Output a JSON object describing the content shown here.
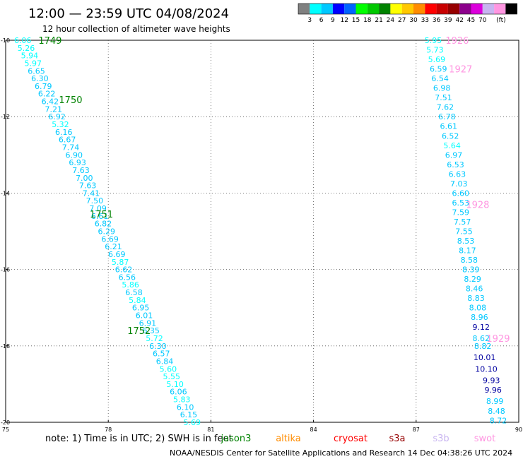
{
  "title": "12:00 — 23:59 UTC 04/08/2024",
  "subtitle": "12 hour collection of altimeter wave heights",
  "legend": {
    "unit": "(ft)",
    "colors": [
      "#808080",
      "#00ffff",
      "#00c8ff",
      "#0000ff",
      "#0064ff",
      "#00ff00",
      "#00c800",
      "#008200",
      "#ffff00",
      "#ffc800",
      "#ff8c00",
      "#ff0000",
      "#c80000",
      "#960000",
      "#8c008c",
      "#dc00dc",
      "#c8b4f0",
      "#ff96e1",
      "#000000"
    ],
    "ticks": [
      "3",
      "6",
      "9",
      "12",
      "15",
      "18",
      "21",
      "24",
      "27",
      "30",
      "33",
      "36",
      "39",
      "42",
      "45",
      "70"
    ]
  },
  "note": "note:  1) Time is in UTC; 2) SWH is in feet",
  "satellites": [
    {
      "name": "jason3",
      "color": "#008200"
    },
    {
      "name": "altika",
      "color": "#ff8c00"
    },
    {
      "name": "cryosat",
      "color": "#ff0000"
    },
    {
      "name": "s3a",
      "color": "#960000"
    },
    {
      "name": "s3b",
      "color": "#c8b4f0"
    },
    {
      "name": "swot",
      "color": "#ff96e1"
    }
  ],
  "credit": "NOAA/NESDIS Center for Satellite Applications and Research    14 Dec 04:38:26 UTC 2024",
  "chart_data": {
    "type": "scatter",
    "xlim": [
      75,
      90
    ],
    "ylim": [
      -20,
      -10
    ],
    "x_ticks": [
      75,
      78,
      81,
      84,
      87,
      90
    ],
    "x_tick_labels": [
      "75",
      "78",
      "81",
      "84",
      "87",
      "90"
    ],
    "y_ticks": [
      -10,
      -12,
      -14,
      -16,
      -18,
      -20
    ],
    "y_tick_labels": [
      "-10",
      "-12",
      "-14",
      "-16",
      "-18",
      "-20"
    ],
    "grid": true,
    "colors": {
      "cyan": "#00c8ff",
      "light_cyan": "#00ffff",
      "navy": "#0000a0"
    },
    "track_times": [
      {
        "label": "1749",
        "x": 76.3,
        "lat": -10.0,
        "color": "#008200"
      },
      {
        "label": "1750",
        "x": 76.9,
        "lat": -11.55,
        "color": "#008200"
      },
      {
        "label": "1751",
        "x": 77.8,
        "lat": -14.55,
        "color": "#008200"
      },
      {
        "label": "1752",
        "x": 78.9,
        "lat": -17.6,
        "color": "#008200"
      },
      {
        "label": "1926",
        "x": 88.2,
        "lat": -10.0,
        "color": "#ff96e1"
      },
      {
        "label": "1927",
        "x": 88.3,
        "lat": -10.75,
        "color": "#ff96e1"
      },
      {
        "label": "1928",
        "x": 88.8,
        "lat": -14.3,
        "color": "#ff96e1"
      },
      {
        "label": "1929",
        "x": 89.4,
        "lat": -17.8,
        "color": "#ff96e1"
      }
    ],
    "tracks": [
      {
        "satellite": "jason3",
        "points": [
          {
            "lon": 75.5,
            "lat": -10.0,
            "v": "6.06",
            "c": "#00ffff"
          },
          {
            "lon": 75.6,
            "lat": -10.2,
            "v": "5.26",
            "c": "#00ffff"
          },
          {
            "lon": 75.7,
            "lat": -10.4,
            "v": "5.94",
            "c": "#00ffff"
          },
          {
            "lon": 75.8,
            "lat": -10.6,
            "v": "5.97",
            "c": "#00ffff"
          },
          {
            "lon": 75.9,
            "lat": -10.8,
            "v": "6.65",
            "c": "#00c8ff"
          },
          {
            "lon": 76.0,
            "lat": -11.0,
            "v": "6.30",
            "c": "#00c8ff"
          },
          {
            "lon": 76.1,
            "lat": -11.2,
            "v": "6.79",
            "c": "#00c8ff"
          },
          {
            "lon": 76.2,
            "lat": -11.4,
            "v": "6.22",
            "c": "#00c8ff"
          },
          {
            "lon": 76.3,
            "lat": -11.6,
            "v": "6.42",
            "c": "#00c8ff"
          },
          {
            "lon": 76.4,
            "lat": -11.8,
            "v": "7.21",
            "c": "#00c8ff"
          },
          {
            "lon": 76.5,
            "lat": -12.0,
            "v": "6.92",
            "c": "#00c8ff"
          },
          {
            "lon": 76.6,
            "lat": -12.2,
            "v": "5.32",
            "c": "#00ffff"
          },
          {
            "lon": 76.7,
            "lat": -12.4,
            "v": "6.16",
            "c": "#00c8ff"
          },
          {
            "lon": 76.8,
            "lat": -12.6,
            "v": "6.67",
            "c": "#00c8ff"
          },
          {
            "lon": 76.9,
            "lat": -12.8,
            "v": "7.74",
            "c": "#00c8ff"
          },
          {
            "lon": 77.0,
            "lat": -13.0,
            "v": "6.90",
            "c": "#00c8ff"
          },
          {
            "lon": 77.1,
            "lat": -13.2,
            "v": "6.93",
            "c": "#00c8ff"
          },
          {
            "lon": 77.2,
            "lat": -13.4,
            "v": "7.63",
            "c": "#00c8ff"
          },
          {
            "lon": 77.3,
            "lat": -13.6,
            "v": "7.00",
            "c": "#00c8ff"
          },
          {
            "lon": 77.4,
            "lat": -13.8,
            "v": "7.63",
            "c": "#00c8ff"
          },
          {
            "lon": 77.5,
            "lat": -14.0,
            "v": "7.41",
            "c": "#00c8ff"
          },
          {
            "lon": 77.6,
            "lat": -14.2,
            "v": "7.50",
            "c": "#00c8ff"
          },
          {
            "lon": 77.7,
            "lat": -14.4,
            "v": "7.09",
            "c": "#00c8ff"
          },
          {
            "lon": 77.75,
            "lat": -14.6,
            "v": "6.61",
            "c": "#00c8ff"
          },
          {
            "lon": 77.85,
            "lat": -14.8,
            "v": "6.82",
            "c": "#00c8ff"
          },
          {
            "lon": 77.95,
            "lat": -15.0,
            "v": "6.29",
            "c": "#00c8ff"
          },
          {
            "lon": 78.05,
            "lat": -15.2,
            "v": "6.69",
            "c": "#00c8ff"
          },
          {
            "lon": 78.15,
            "lat": -15.4,
            "v": "6.21",
            "c": "#00c8ff"
          },
          {
            "lon": 78.25,
            "lat": -15.6,
            "v": "6.69",
            "c": "#00c8ff"
          },
          {
            "lon": 78.35,
            "lat": -15.8,
            "v": "5.87",
            "c": "#00ffff"
          },
          {
            "lon": 78.45,
            "lat": -16.0,
            "v": "6.62",
            "c": "#00c8ff"
          },
          {
            "lon": 78.55,
            "lat": -16.2,
            "v": "6.56",
            "c": "#00c8ff"
          },
          {
            "lon": 78.65,
            "lat": -16.4,
            "v": "5.86",
            "c": "#00ffff"
          },
          {
            "lon": 78.75,
            "lat": -16.6,
            "v": "6.58",
            "c": "#00c8ff"
          },
          {
            "lon": 78.85,
            "lat": -16.8,
            "v": "5.84",
            "c": "#00ffff"
          },
          {
            "lon": 78.95,
            "lat": -17.0,
            "v": "6.95",
            "c": "#00c8ff"
          },
          {
            "lon": 79.05,
            "lat": -17.2,
            "v": "6.01",
            "c": "#00c8ff"
          },
          {
            "lon": 79.15,
            "lat": -17.4,
            "v": "6.91",
            "c": "#00c8ff"
          },
          {
            "lon": 79.25,
            "lat": -17.6,
            "v": "6.35",
            "c": "#00c8ff"
          },
          {
            "lon": 79.35,
            "lat": -17.8,
            "v": "5.72",
            "c": "#00ffff"
          },
          {
            "lon": 79.45,
            "lat": -18.0,
            "v": "6.30",
            "c": "#00c8ff"
          },
          {
            "lon": 79.55,
            "lat": -18.2,
            "v": "6.57",
            "c": "#00c8ff"
          },
          {
            "lon": 79.65,
            "lat": -18.4,
            "v": "6.84",
            "c": "#00c8ff"
          },
          {
            "lon": 79.75,
            "lat": -18.6,
            "v": "5.60",
            "c": "#00ffff"
          },
          {
            "lon": 79.85,
            "lat": -18.8,
            "v": "5.55",
            "c": "#00ffff"
          },
          {
            "lon": 79.95,
            "lat": -19.0,
            "v": "5.10",
            "c": "#00ffff"
          },
          {
            "lon": 80.05,
            "lat": -19.2,
            "v": "6.06",
            "c": "#00c8ff"
          },
          {
            "lon": 80.15,
            "lat": -19.4,
            "v": "5.83",
            "c": "#00ffff"
          },
          {
            "lon": 80.25,
            "lat": -19.6,
            "v": "6.10",
            "c": "#00c8ff"
          },
          {
            "lon": 80.35,
            "lat": -19.8,
            "v": "6.15",
            "c": "#00c8ff"
          },
          {
            "lon": 80.45,
            "lat": -20.0,
            "v": "5.69",
            "c": "#00ffff"
          }
        ]
      },
      {
        "satellite": "swot",
        "points": [
          {
            "lon": 87.5,
            "lat": -10.0,
            "v": "5.95",
            "c": "#00ffff"
          },
          {
            "lon": 87.55,
            "lat": -10.25,
            "v": "5.73",
            "c": "#00ffff"
          },
          {
            "lon": 87.6,
            "lat": -10.5,
            "v": "5.69",
            "c": "#00ffff"
          },
          {
            "lon": 87.65,
            "lat": -10.75,
            "v": "6.59",
            "c": "#00c8ff"
          },
          {
            "lon": 87.7,
            "lat": -11.0,
            "v": "6.54",
            "c": "#00c8ff"
          },
          {
            "lon": 87.75,
            "lat": -11.25,
            "v": "6.98",
            "c": "#00c8ff"
          },
          {
            "lon": 87.8,
            "lat": -11.5,
            "v": "7.51",
            "c": "#00c8ff"
          },
          {
            "lon": 87.85,
            "lat": -11.75,
            "v": "7.62",
            "c": "#00c8ff"
          },
          {
            "lon": 87.9,
            "lat": -12.0,
            "v": "6.78",
            "c": "#00c8ff"
          },
          {
            "lon": 87.95,
            "lat": -12.25,
            "v": "6.61",
            "c": "#00c8ff"
          },
          {
            "lon": 88.0,
            "lat": -12.5,
            "v": "6.52",
            "c": "#00c8ff"
          },
          {
            "lon": 88.05,
            "lat": -12.75,
            "v": "5.64",
            "c": "#00ffff"
          },
          {
            "lon": 88.1,
            "lat": -13.0,
            "v": "6.97",
            "c": "#00c8ff"
          },
          {
            "lon": 88.15,
            "lat": -13.25,
            "v": "6.53",
            "c": "#00c8ff"
          },
          {
            "lon": 88.2,
            "lat": -13.5,
            "v": "6.63",
            "c": "#00c8ff"
          },
          {
            "lon": 88.25,
            "lat": -13.75,
            "v": "7.03",
            "c": "#00c8ff"
          },
          {
            "lon": 88.3,
            "lat": -14.0,
            "v": "6.60",
            "c": "#00c8ff"
          },
          {
            "lon": 88.3,
            "lat": -14.25,
            "v": "6.53",
            "c": "#00c8ff"
          },
          {
            "lon": 88.3,
            "lat": -14.5,
            "v": "7.59",
            "c": "#00c8ff"
          },
          {
            "lon": 88.35,
            "lat": -14.75,
            "v": "7.57",
            "c": "#00c8ff"
          },
          {
            "lon": 88.4,
            "lat": -15.0,
            "v": "7.55",
            "c": "#00c8ff"
          },
          {
            "lon": 88.45,
            "lat": -15.25,
            "v": "8.53",
            "c": "#00c8ff"
          },
          {
            "lon": 88.5,
            "lat": -15.5,
            "v": "8.17",
            "c": "#00c8ff"
          },
          {
            "lon": 88.55,
            "lat": -15.75,
            "v": "8.58",
            "c": "#00c8ff"
          },
          {
            "lon": 88.6,
            "lat": -16.0,
            "v": "8.39",
            "c": "#00c8ff"
          },
          {
            "lon": 88.65,
            "lat": -16.25,
            "v": "8.29",
            "c": "#00c8ff"
          },
          {
            "lon": 88.7,
            "lat": -16.5,
            "v": "8.46",
            "c": "#00c8ff"
          },
          {
            "lon": 88.75,
            "lat": -16.75,
            "v": "8.83",
            "c": "#00c8ff"
          },
          {
            "lon": 88.8,
            "lat": -17.0,
            "v": "8.08",
            "c": "#00c8ff"
          },
          {
            "lon": 88.85,
            "lat": -17.25,
            "v": "8.96",
            "c": "#00c8ff"
          },
          {
            "lon": 88.9,
            "lat": -17.5,
            "v": "9.12",
            "c": "#0000a0"
          },
          {
            "lon": 88.9,
            "lat": -17.8,
            "v": "8.62",
            "c": "#00c8ff"
          },
          {
            "lon": 88.95,
            "lat": -18.0,
            "v": "8.82",
            "c": "#00c8ff"
          },
          {
            "lon": 89.0,
            "lat": -18.3,
            "v": "10.01",
            "c": "#0000a0"
          },
          {
            "lon": 89.05,
            "lat": -18.6,
            "v": "10.10",
            "c": "#0000a0"
          },
          {
            "lon": 89.2,
            "lat": -18.9,
            "v": "9.93",
            "c": "#0000a0"
          },
          {
            "lon": 89.25,
            "lat": -19.15,
            "v": "9.96",
            "c": "#0000a0"
          },
          {
            "lon": 89.3,
            "lat": -19.45,
            "v": "8.99",
            "c": "#00c8ff"
          },
          {
            "lon": 89.35,
            "lat": -19.7,
            "v": "8.48",
            "c": "#00c8ff"
          },
          {
            "lon": 89.4,
            "lat": -19.95,
            "v": "8.72",
            "c": "#00c8ff"
          }
        ]
      }
    ]
  }
}
